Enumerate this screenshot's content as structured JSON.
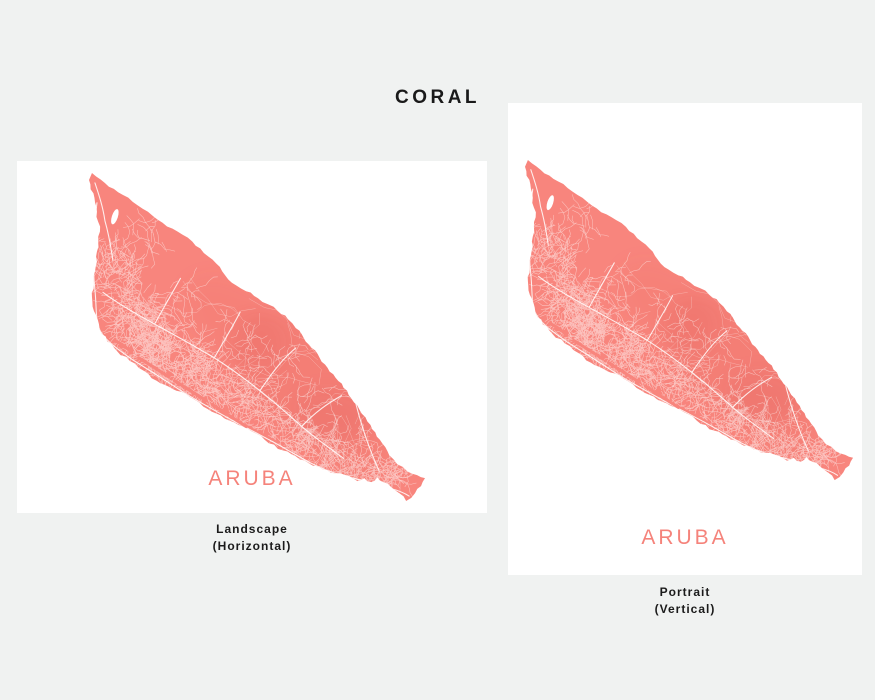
{
  "title": "CORAL",
  "colors": {
    "background": "#f0f2f1",
    "panel": "#ffffff",
    "coral": "#f8857d",
    "coral_dark": "#e05a52",
    "coral_text": "#f5837b",
    "street": "#ffffff",
    "caption": "#1b1b1b",
    "title_color": "#1a1a1a"
  },
  "panels": [
    {
      "orientation": "landscape",
      "map_label": "ARUBA",
      "caption_line1": "Landscape",
      "caption_line2": "(Horizontal)"
    },
    {
      "orientation": "portrait",
      "map_label": "ARUBA",
      "caption_line1": "Portrait",
      "caption_line2": "(Vertical)"
    }
  ]
}
